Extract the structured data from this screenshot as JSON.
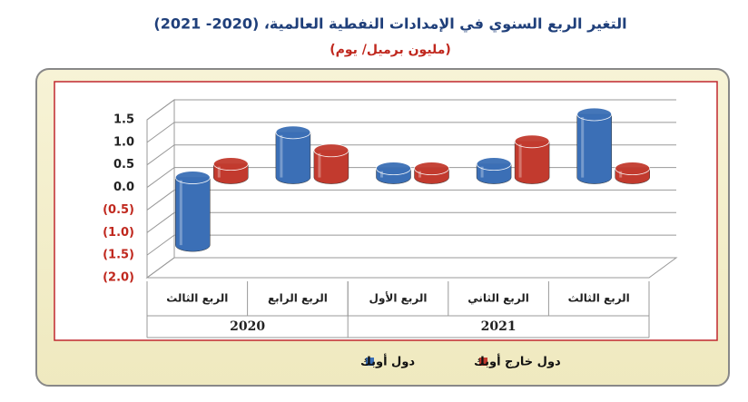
{
  "chart_data": {
    "type": "bar",
    "title": "التغير الربع السنوي في الإمدادات النفطية العالمية، (2020- 2021)",
    "subtitle": "(مليون برميل/ يوم)",
    "groups": [
      {
        "label": "2020",
        "categories": [
          "الربع الثالث",
          "الربع الرابع"
        ]
      },
      {
        "label": "2021",
        "categories": [
          "الربع الأول",
          "الربع الثاني",
          "الربع الثالث"
        ]
      }
    ],
    "series": [
      {
        "name": "دول أوبك",
        "color": "#3b6fb6",
        "values": [
          -1.5,
          1.0,
          0.2,
          0.3,
          1.4
        ]
      },
      {
        "name": "دول خارج أوبك",
        "color": "#c23a2e",
        "values": [
          0.3,
          0.6,
          0.2,
          0.8,
          0.2
        ]
      }
    ],
    "ylim": [
      -2,
      1.5
    ],
    "yticks": [
      1.5,
      {
        "value": 1,
        "label": "1.0"
      },
      0.5,
      {
        "value": 0,
        "label": "0.0"
      },
      {
        "value": -0.5,
        "label": "(0.5)"
      },
      {
        "value": -1,
        "label": "(1.0)"
      },
      {
        "value": -1.5,
        "label": "(1.5)"
      },
      {
        "value": -2,
        "label": "(2.0)"
      }
    ],
    "grid": true
  }
}
